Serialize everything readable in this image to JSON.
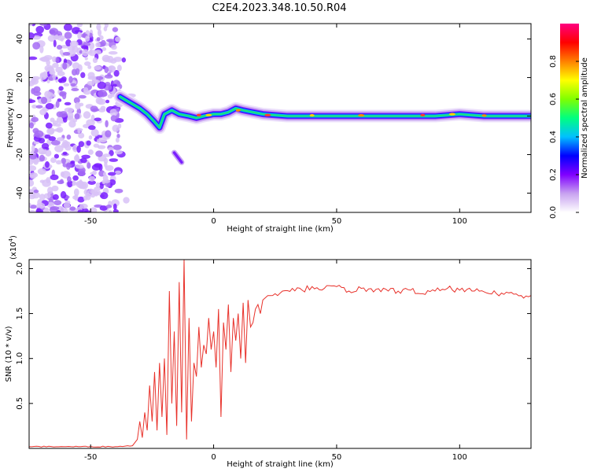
{
  "title": "C2E4.2023.348.10.50.R04",
  "chart_data": [
    {
      "type": "heatmap",
      "xlabel": "Height of straight line (km)",
      "ylabel": "Frequency (Hz)",
      "xlim": [
        -75,
        129
      ],
      "ylim": [
        -50,
        48
      ],
      "x_ticks": [
        -50,
        0,
        50,
        100
      ],
      "y_ticks": [
        40,
        20,
        0,
        -20,
        -40
      ],
      "colorbar": {
        "label": "Normalized spectral amplitude",
        "range": [
          0.0,
          1.0
        ],
        "ticks": [
          0.0,
          0.2,
          0.4,
          0.6,
          0.8
        ],
        "colors": [
          "#ffffff",
          "#c8a2f0",
          "#8000ff",
          "#0000ff",
          "#00c0ff",
          "#00ff80",
          "#80ff00",
          "#ffff00",
          "#ff8000",
          "#ff0000",
          "#ff0080"
        ]
      },
      "ridge": {
        "x": [
          -38,
          -34,
          -30,
          -27,
          -24,
          -22,
          -20,
          -17,
          -14,
          -10,
          -7,
          -4,
          0,
          3,
          6,
          9,
          12,
          16,
          20,
          30,
          50,
          70,
          90,
          100,
          110,
          129
        ],
        "y": [
          10,
          7,
          4,
          1,
          -3,
          -6,
          1,
          3,
          1,
          0,
          -1,
          0,
          1,
          1,
          2,
          4,
          3,
          2,
          1,
          0,
          0,
          0,
          0,
          1,
          0,
          0
        ]
      },
      "isolated_feature": {
        "x": [
          -16,
          -13
        ],
        "y": [
          -19,
          -24
        ]
      },
      "noise_region_x": [
        -75,
        -38
      ]
    },
    {
      "type": "line",
      "xlabel": "Height of straight line (km)",
      "ylabel": "SNR (10 * v/v)",
      "y_multiplier": "(x10",
      "y_multiplier_exp": "4",
      "xlim": [
        -75,
        129
      ],
      "ylim": [
        0,
        2.1
      ],
      "x_ticks": [
        -50,
        0,
        50,
        100
      ],
      "y_ticks": [
        0.5,
        1.0,
        1.5,
        2.0
      ],
      "series": [
        {
          "color": "#e8312a",
          "x": [
            -75,
            -60,
            -40,
            -33,
            -31,
            -30,
            -29,
            -28,
            -27,
            -26,
            -25,
            -24,
            -23,
            -22,
            -21,
            -20,
            -19,
            -18,
            -17,
            -16,
            -15,
            -14,
            -13,
            -12,
            -11,
            -10,
            -9,
            -8,
            -7,
            -6,
            -5,
            -4,
            -3,
            -2,
            -1,
            0,
            1,
            2,
            3,
            4,
            5,
            6,
            7,
            8,
            9,
            10,
            11,
            12,
            13,
            14,
            15,
            16,
            17,
            18,
            19,
            20,
            22,
            25,
            28,
            32,
            36,
            40,
            45,
            50,
            55,
            60,
            65,
            70,
            75,
            80,
            85,
            90,
            95,
            100,
            105,
            110,
            115,
            120,
            125,
            129
          ],
          "y": [
            0.02,
            0.02,
            0.02,
            0.03,
            0.1,
            0.3,
            0.12,
            0.4,
            0.2,
            0.7,
            0.3,
            0.85,
            0.2,
            0.95,
            0.35,
            1.0,
            0.15,
            1.75,
            0.5,
            1.3,
            0.25,
            1.85,
            0.4,
            2.1,
            0.1,
            1.45,
            0.3,
            0.95,
            0.8,
            1.35,
            0.9,
            1.15,
            1.05,
            1.45,
            1.1,
            1.3,
            0.9,
            1.55,
            0.35,
            1.4,
            1.1,
            1.6,
            0.85,
            1.45,
            1.2,
            1.5,
            1.0,
            1.62,
            0.95,
            1.65,
            1.35,
            1.4,
            1.55,
            1.6,
            1.5,
            1.65,
            1.7,
            1.72,
            1.75,
            1.78,
            1.76,
            1.8,
            1.78,
            1.8,
            1.75,
            1.78,
            1.74,
            1.77,
            1.75,
            1.76,
            1.72,
            1.75,
            1.78,
            1.76,
            1.75,
            1.74,
            1.72,
            1.73,
            1.7,
            1.7
          ]
        }
      ]
    }
  ]
}
